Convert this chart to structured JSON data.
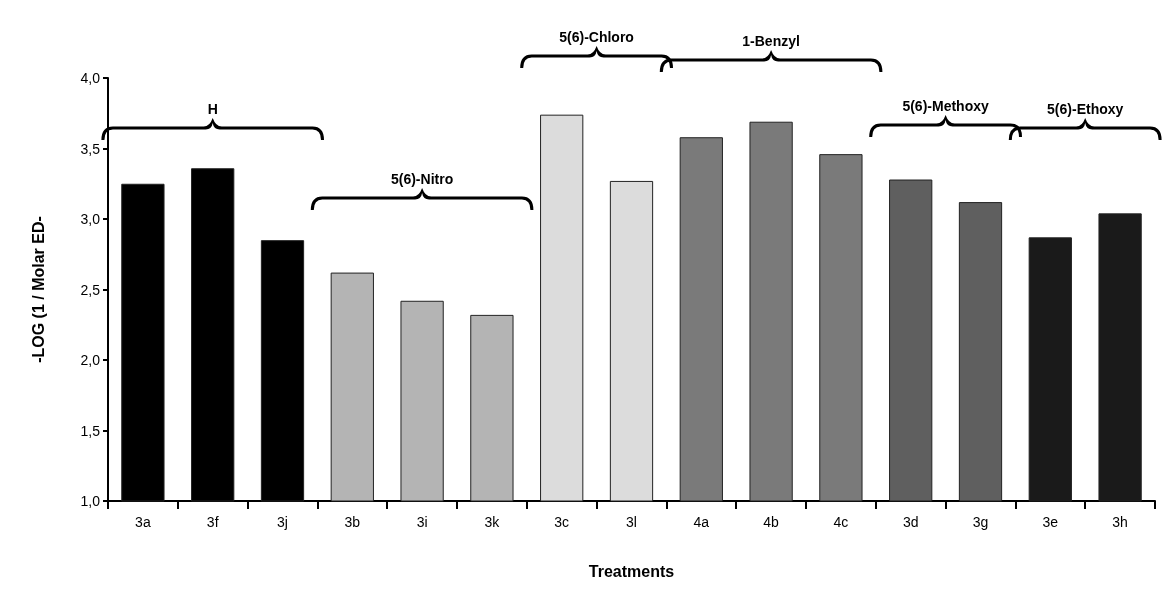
{
  "chart_data": {
    "type": "bar",
    "xlabel": "Treatments",
    "ylabel": "-LOG (1 / Molar ED-",
    "categories": [
      "3a",
      "3f",
      "3j",
      "3b",
      "3i",
      "3k",
      "3c",
      "3l",
      "4a",
      "4b",
      "4c",
      "3d",
      "3g",
      "3e",
      "3h"
    ],
    "values": [
      3.25,
      3.36,
      2.85,
      2.62,
      2.42,
      2.32,
      3.74,
      3.27,
      3.58,
      3.69,
      3.46,
      3.28,
      3.12,
      2.87,
      3.04
    ],
    "colors": [
      "#000000",
      "#000000",
      "#000000",
      "#b4b4b4",
      "#b4b4b4",
      "#b4b4b4",
      "#dcdcdc",
      "#dcdcdc",
      "#7a7a7a",
      "#7a7a7a",
      "#7a7a7a",
      "#5f5f5f",
      "#5f5f5f",
      "#1a1a1a",
      "#1a1a1a"
    ],
    "ylim": [
      1,
      4
    ],
    "yticks": [
      {
        "value": 1,
        "label": "1,0"
      },
      {
        "value": 1.5,
        "label": "1,5"
      },
      {
        "value": 2,
        "label": "2,0"
      },
      {
        "value": 2.5,
        "label": "2,5"
      },
      {
        "value": 3,
        "label": "3,0"
      },
      {
        "value": 3.5,
        "label": "3,5"
      },
      {
        "value": 4,
        "label": "4,0"
      }
    ],
    "grid": false,
    "annotations": [
      "H",
      "5(6)-Nitro",
      "5(6)-Chloro",
      "1-Benzyl",
      "5(6)-Methoxy",
      "5(6)-Ethoxy"
    ]
  }
}
